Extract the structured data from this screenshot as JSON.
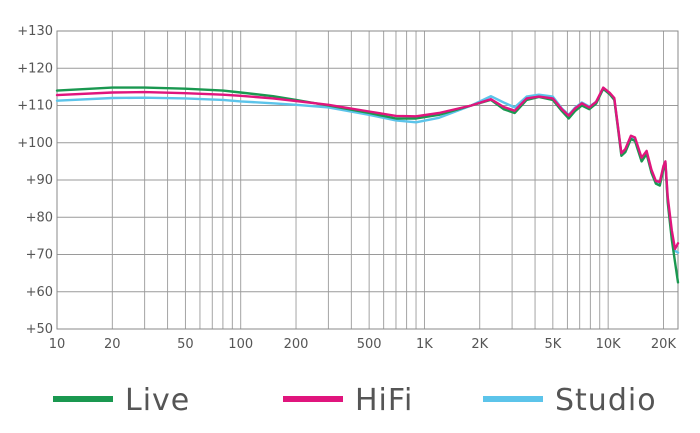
{
  "chart_data": {
    "type": "line",
    "x_scale": "log",
    "xlim": [
      10,
      24000
    ],
    "ylim": [
      50,
      130
    ],
    "grid": true,
    "legend_position": "bottom",
    "x_ticks": [
      {
        "value": 10,
        "label": "10"
      },
      {
        "value": 20,
        "label": "20"
      },
      {
        "value": 50,
        "label": "50"
      },
      {
        "value": 100,
        "label": "100"
      },
      {
        "value": 200,
        "label": "200"
      },
      {
        "value": 500,
        "label": "500"
      },
      {
        "value": 1000,
        "label": "1K"
      },
      {
        "value": 2000,
        "label": "2K"
      },
      {
        "value": 5000,
        "label": "5K"
      },
      {
        "value": 10000,
        "label": "10K"
      },
      {
        "value": 20000,
        "label": "20K"
      }
    ],
    "y_ticks": [
      {
        "value": 130,
        "label": "+130"
      },
      {
        "value": 120,
        "label": "+120"
      },
      {
        "value": 110,
        "label": "+110"
      },
      {
        "value": 100,
        "label": "+100"
      },
      {
        "value": 90,
        "label": "+90"
      },
      {
        "value": 80,
        "label": "+80"
      },
      {
        "value": 70,
        "label": "+70"
      },
      {
        "value": 60,
        "label": "+60"
      },
      {
        "value": 50,
        "label": "+50"
      }
    ],
    "series": [
      {
        "name": "Live",
        "color": "#1a9850",
        "points": [
          [
            10,
            114
          ],
          [
            20,
            114.8
          ],
          [
            30,
            114.8
          ],
          [
            50,
            114.5
          ],
          [
            80,
            114
          ],
          [
            100,
            113.5
          ],
          [
            150,
            112.5
          ],
          [
            200,
            111.5
          ],
          [
            300,
            110
          ],
          [
            500,
            108
          ],
          [
            700,
            106.5
          ],
          [
            900,
            106.5
          ],
          [
            1200,
            107.5
          ],
          [
            1800,
            110
          ],
          [
            2300,
            111.5
          ],
          [
            2700,
            109
          ],
          [
            3100,
            108
          ],
          [
            3600,
            111.5
          ],
          [
            4200,
            112.3
          ],
          [
            5000,
            111.5
          ],
          [
            5600,
            108.5
          ],
          [
            6100,
            106.5
          ],
          [
            6600,
            108.5
          ],
          [
            7200,
            110
          ],
          [
            7900,
            109
          ],
          [
            8600,
            110.5
          ],
          [
            9400,
            114.5
          ],
          [
            10200,
            113
          ],
          [
            10800,
            111.5
          ],
          [
            11300,
            104
          ],
          [
            11800,
            96.5
          ],
          [
            12400,
            97.5
          ],
          [
            13300,
            101
          ],
          [
            14000,
            100.5
          ],
          [
            15200,
            95
          ],
          [
            16200,
            97
          ],
          [
            17200,
            92
          ],
          [
            18200,
            89
          ],
          [
            19100,
            88.5
          ],
          [
            20000,
            93
          ],
          [
            20500,
            94.5
          ],
          [
            21100,
            84
          ],
          [
            22200,
            74
          ],
          [
            23100,
            68
          ],
          [
            24000,
            62.5
          ]
        ]
      },
      {
        "name": "HiFi",
        "color": "#e0157d",
        "points": [
          [
            10,
            112.8
          ],
          [
            20,
            113.5
          ],
          [
            30,
            113.6
          ],
          [
            50,
            113.3
          ],
          [
            80,
            112.9
          ],
          [
            100,
            112.6
          ],
          [
            150,
            111.9
          ],
          [
            200,
            111.2
          ],
          [
            300,
            110.2
          ],
          [
            500,
            108.4
          ],
          [
            700,
            107.2
          ],
          [
            900,
            107.1
          ],
          [
            1200,
            108
          ],
          [
            1800,
            110
          ],
          [
            2300,
            111.7
          ],
          [
            2700,
            109.6
          ],
          [
            3100,
            108.6
          ],
          [
            3600,
            111.9
          ],
          [
            4200,
            112.4
          ],
          [
            5000,
            111.9
          ],
          [
            5600,
            109
          ],
          [
            6100,
            107.3
          ],
          [
            6600,
            109.2
          ],
          [
            7200,
            110.6
          ],
          [
            7900,
            109.5
          ],
          [
            8600,
            111
          ],
          [
            9400,
            114.8
          ],
          [
            10200,
            113.4
          ],
          [
            10800,
            112
          ],
          [
            11300,
            104.5
          ],
          [
            11800,
            97.2
          ],
          [
            12400,
            98.3
          ],
          [
            13300,
            101.9
          ],
          [
            14000,
            101.4
          ],
          [
            15200,
            96
          ],
          [
            16200,
            97.8
          ],
          [
            17200,
            92.8
          ],
          [
            18200,
            89.7
          ],
          [
            19100,
            89.5
          ],
          [
            20000,
            93.8
          ],
          [
            20500,
            95
          ],
          [
            21100,
            85.5
          ],
          [
            22200,
            76.5
          ],
          [
            23100,
            71.5
          ],
          [
            24000,
            73
          ]
        ]
      },
      {
        "name": "Studio",
        "color": "#5cc4ea",
        "points": [
          [
            10,
            111.3
          ],
          [
            20,
            112
          ],
          [
            30,
            112.1
          ],
          [
            50,
            111.9
          ],
          [
            80,
            111.5
          ],
          [
            100,
            111.1
          ],
          [
            150,
            110.6
          ],
          [
            200,
            110.2
          ],
          [
            300,
            109.5
          ],
          [
            500,
            107.5
          ],
          [
            700,
            106
          ],
          [
            900,
            105.5
          ],
          [
            1200,
            106.7
          ],
          [
            1800,
            110
          ],
          [
            2300,
            112.5
          ],
          [
            2700,
            110.8
          ],
          [
            3100,
            109.5
          ],
          [
            3600,
            112.4
          ],
          [
            4200,
            112.9
          ],
          [
            5000,
            112.4
          ],
          [
            5600,
            109.2
          ],
          [
            6100,
            107.5
          ],
          [
            6600,
            109.4
          ],
          [
            7200,
            110.8
          ],
          [
            7900,
            109.7
          ],
          [
            8600,
            111
          ],
          [
            9400,
            114.4
          ],
          [
            10200,
            113.2
          ],
          [
            10800,
            111.8
          ],
          [
            11300,
            104.3
          ],
          [
            11800,
            97
          ],
          [
            12400,
            98.1
          ],
          [
            13300,
            101.6
          ],
          [
            14000,
            101
          ],
          [
            15200,
            95.6
          ],
          [
            16200,
            97.5
          ],
          [
            17200,
            92.5
          ],
          [
            18200,
            89.5
          ],
          [
            19100,
            89.2
          ],
          [
            20000,
            93.5
          ],
          [
            20500,
            94.7
          ],
          [
            21100,
            85
          ],
          [
            22200,
            75.5
          ],
          [
            23100,
            71
          ],
          [
            24000,
            70.5
          ]
        ]
      }
    ]
  }
}
